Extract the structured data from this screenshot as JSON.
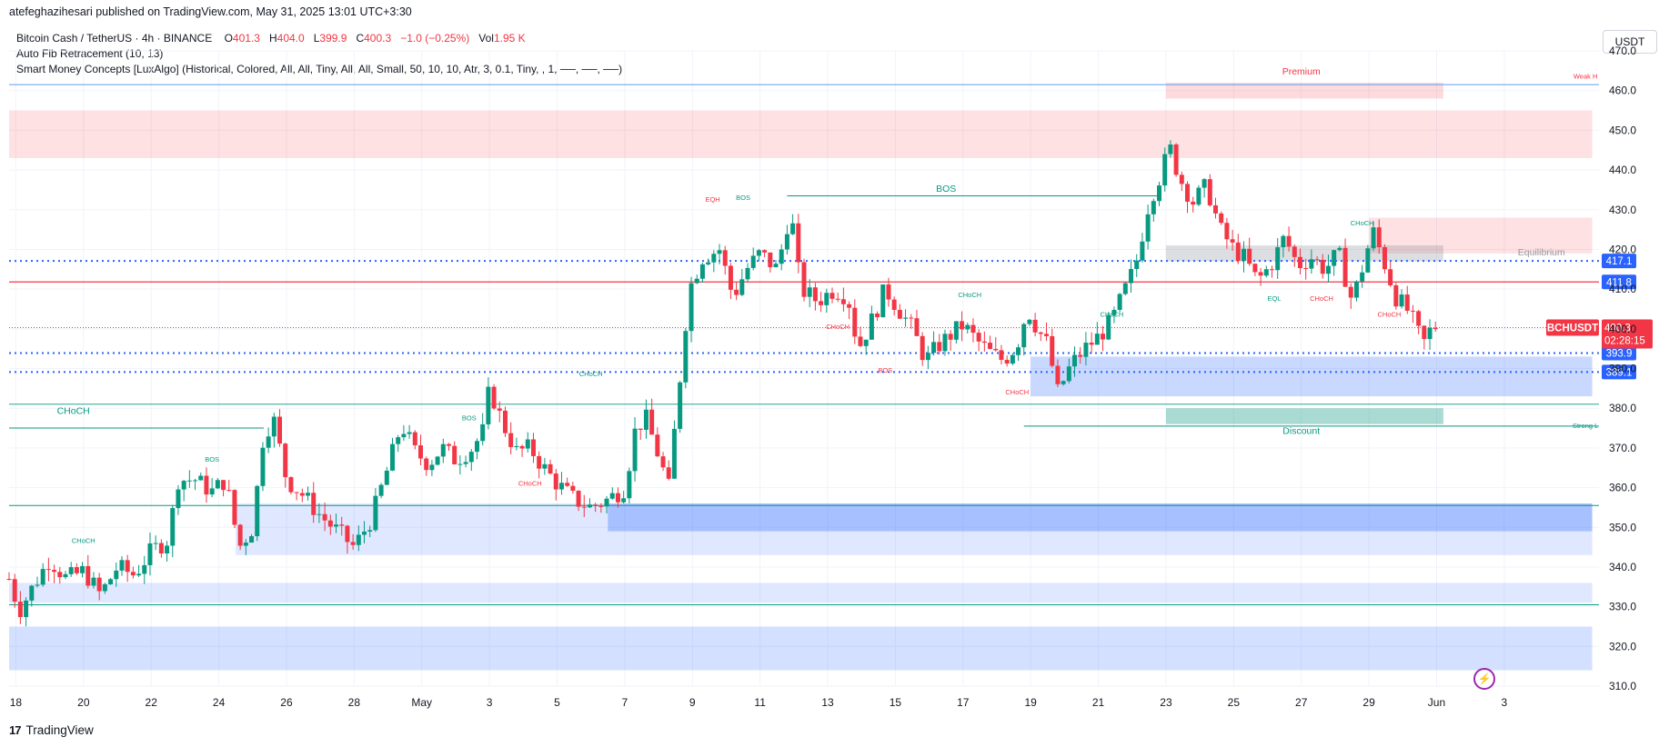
{
  "header": {
    "publisher": "atefeghazihesari published on TradingView.com, May 31, 2025 13:01 UTC+3:30",
    "symbol_line": "Bitcoin Cash / TetherUS · 4h · BINANCE",
    "ohlc": {
      "o_label": "O",
      "o": "401.3",
      "h_label": "H",
      "h": "404.0",
      "l_label": "L",
      "l": "399.9",
      "c_label": "C",
      "c": "400.3",
      "change": "−1.0 (−0.25%)",
      "vol_label": "Vol",
      "vol": "1.95 K"
    },
    "indicator1": "Auto Fib Retracement (10, 13)",
    "indicator2": "Smart Money Concepts [LuxAlgo] (Historical, Colored, All, All, Tiny, All, All, Small, 50, 10, 10, Atr, 3, 0.1, Tiny, , 1, ──, ──, ──)",
    "currency": "USDT"
  },
  "footer": {
    "brand": "TradingView",
    "logo": "17"
  },
  "colors": {
    "up": "#089981",
    "down": "#f23645",
    "blue": "#2962ff",
    "grid": "#f0f3fa"
  },
  "chart_data": {
    "type": "candlestick",
    "ylim": [
      310,
      470
    ],
    "y_ticks": [
      310,
      320,
      330,
      340,
      350,
      360,
      370,
      380,
      390,
      400,
      410,
      420,
      430,
      440,
      450,
      460,
      470
    ],
    "y_tick_labels": [
      "310.0",
      "320.0",
      "330.0",
      "340.0",
      "350.0",
      "360.0",
      "370.0",
      "380.0",
      "390.0",
      "400.0",
      "410.0",
      "420.0",
      "430.0",
      "440.0",
      "450.0",
      "460.0",
      "470.0"
    ],
    "x_ticks": [
      {
        "day": 18,
        "label": "18"
      },
      {
        "day": 20,
        "label": "20"
      },
      {
        "day": 22,
        "label": "22"
      },
      {
        "day": 24,
        "label": "24"
      },
      {
        "day": 26,
        "label": "26"
      },
      {
        "day": 28,
        "label": "28"
      },
      {
        "day": 30,
        "label": "May"
      },
      {
        "day": 32,
        "label": "3"
      },
      {
        "day": 34,
        "label": "5"
      },
      {
        "day": 36,
        "label": "7"
      },
      {
        "day": 38,
        "label": "9"
      },
      {
        "day": 40,
        "label": "11"
      },
      {
        "day": 42,
        "label": "13"
      },
      {
        "day": 44,
        "label": "15"
      },
      {
        "day": 46,
        "label": "17"
      },
      {
        "day": 48,
        "label": "19"
      },
      {
        "day": 50,
        "label": "21"
      },
      {
        "day": 52,
        "label": "23"
      },
      {
        "day": 54,
        "label": "25"
      },
      {
        "day": 56,
        "label": "27"
      },
      {
        "day": 58,
        "label": "29"
      },
      {
        "day": 60,
        "label": "Jun"
      },
      {
        "day": 62,
        "label": "3"
      }
    ],
    "price_path": [
      [
        17.8,
        337
      ],
      [
        18.1,
        329
      ],
      [
        18.5,
        335
      ],
      [
        19,
        342
      ],
      [
        19.5,
        337
      ],
      [
        20,
        339
      ],
      [
        20.5,
        333
      ],
      [
        21,
        340
      ],
      [
        21.5,
        338
      ],
      [
        22,
        344
      ],
      [
        22.5,
        347
      ],
      [
        22.8,
        362
      ],
      [
        23.3,
        362
      ],
      [
        23.8,
        359
      ],
      [
        24.2,
        362
      ],
      [
        24.6,
        345
      ],
      [
        25,
        350
      ],
      [
        25.3,
        372
      ],
      [
        25.6,
        378
      ],
      [
        26,
        362
      ],
      [
        26.5,
        358
      ],
      [
        27,
        353
      ],
      [
        27.5,
        349
      ],
      [
        28,
        345
      ],
      [
        28.5,
        352
      ],
      [
        29,
        365
      ],
      [
        29.4,
        376
      ],
      [
        29.8,
        369
      ],
      [
        30.2,
        366
      ],
      [
        30.6,
        370
      ],
      [
        31,
        367
      ],
      [
        31.5,
        370
      ],
      [
        31.8,
        374
      ],
      [
        32,
        385
      ],
      [
        32.4,
        376
      ],
      [
        32.8,
        369
      ],
      [
        33.2,
        370
      ],
      [
        33.6,
        365
      ],
      [
        34,
        361
      ],
      [
        34.5,
        357
      ],
      [
        35,
        355
      ],
      [
        35.5,
        357
      ],
      [
        36,
        360
      ],
      [
        36.3,
        374
      ],
      [
        36.6,
        378
      ],
      [
        37,
        368
      ],
      [
        37.3,
        360
      ],
      [
        37.6,
        385
      ],
      [
        37.9,
        410
      ],
      [
        38.3,
        418
      ],
      [
        38.8,
        420
      ],
      [
        39.2,
        408
      ],
      [
        39.6,
        415
      ],
      [
        40,
        419
      ],
      [
        40.5,
        415
      ],
      [
        40.9,
        430
      ],
      [
        41.2,
        410
      ],
      [
        41.7,
        407
      ],
      [
        42.2,
        410
      ],
      [
        42.6,
        408
      ],
      [
        42.9,
        395
      ],
      [
        43.3,
        402
      ],
      [
        43.7,
        410
      ],
      [
        44.1,
        405
      ],
      [
        44.5,
        400
      ],
      [
        44.9,
        392
      ],
      [
        45.3,
        396
      ],
      [
        45.7,
        399
      ],
      [
        46,
        401
      ],
      [
        46.4,
        397
      ],
      [
        46.8,
        394
      ],
      [
        47.2,
        392
      ],
      [
        47.6,
        396
      ],
      [
        47.9,
        405
      ],
      [
        48.2,
        400
      ],
      [
        48.5,
        396
      ],
      [
        48.8,
        384
      ],
      [
        49.2,
        391
      ],
      [
        49.6,
        395
      ],
      [
        50,
        398
      ],
      [
        50.4,
        402
      ],
      [
        50.8,
        410
      ],
      [
        51.1,
        416
      ],
      [
        51.5,
        432
      ],
      [
        51.9,
        440
      ],
      [
        52.1,
        446
      ],
      [
        52.4,
        438
      ],
      [
        52.8,
        432
      ],
      [
        53.2,
        436
      ],
      [
        53.6,
        425
      ],
      [
        54,
        420
      ],
      [
        54.3,
        418
      ],
      [
        54.7,
        412
      ],
      [
        55.1,
        416
      ],
      [
        55.5,
        423
      ],
      [
        55.9,
        416
      ],
      [
        56.3,
        418
      ],
      [
        56.7,
        415
      ],
      [
        57.1,
        419
      ],
      [
        57.5,
        407
      ],
      [
        57.9,
        418
      ],
      [
        58.1,
        425
      ],
      [
        58.4,
        418
      ],
      [
        58.8,
        408
      ],
      [
        59.2,
        404
      ],
      [
        59.6,
        396
      ],
      [
        59.9,
        401
      ],
      [
        60.1,
        400
      ]
    ],
    "zones": [
      {
        "label": "supply-top-left",
        "y": [
          443,
          455
        ],
        "color": "rgba(242,54,69,0.15)",
        "x": [
          17.8,
          64.6
        ]
      },
      {
        "label": "premium-zone",
        "y": [
          458,
          462
        ],
        "color": "rgba(242,54,69,0.18)",
        "x": [
          52,
          60.2
        ]
      },
      {
        "label": "supply-right",
        "y": [
          419,
          428
        ],
        "color": "rgba(242,54,69,0.15)",
        "x": [
          58,
          64.6
        ]
      },
      {
        "label": "equilibrium-zone",
        "y": [
          417,
          421
        ],
        "color": "rgba(120,123,134,0.25)",
        "x": [
          52,
          60.2
        ]
      },
      {
        "label": "demand-right",
        "y": [
          383,
          393
        ],
        "color": "rgba(41,98,255,0.25)",
        "x": [
          48,
          64.6
        ]
      },
      {
        "label": "discount-zone",
        "y": [
          376,
          380
        ],
        "color": "rgba(8,153,129,0.35)",
        "x": [
          52,
          60.2
        ]
      },
      {
        "label": "demand-mid",
        "y": [
          349,
          356
        ],
        "color": "rgba(41,98,255,0.30)",
        "x": [
          35.5,
          64.6
        ]
      },
      {
        "label": "demand-wide",
        "y": [
          343,
          356
        ],
        "color": "rgba(41,98,255,0.15)",
        "x": [
          24.5,
          64.6
        ]
      },
      {
        "label": "demand-lower",
        "y": [
          331,
          336
        ],
        "color": "rgba(41,98,255,0.15)",
        "x": [
          17.8,
          64.6
        ]
      },
      {
        "label": "demand-bottom",
        "y": [
          314,
          325
        ],
        "color": "rgba(41,98,255,0.20)",
        "x": [
          17.8,
          64.6
        ]
      }
    ],
    "levels": [
      {
        "y": 417.1,
        "label": "417.1",
        "color": "#2962ff",
        "style": "dotted"
      },
      {
        "y": 411.8,
        "label": "411.8",
        "color": "#2962ff",
        "style": "solid-red-line"
      },
      {
        "y": 393.9,
        "label": "393.9",
        "color": "#2962ff",
        "style": "dotted"
      },
      {
        "y": 389.1,
        "label": "389.1",
        "color": "#2962ff",
        "style": "dotted"
      }
    ],
    "current_price": {
      "y": 400.3,
      "symbol": "BCHUSDT",
      "price": "400.3",
      "countdown": "02:28:15"
    },
    "annotations": [
      {
        "text": "Premium",
        "day": 56,
        "y": 464,
        "color": "#f23645"
      },
      {
        "text": "Weak H",
        "day": 64.4,
        "y": 463,
        "color": "#f23645"
      },
      {
        "text": "Equilibrium",
        "day": 63.1,
        "y": 418.5,
        "color": "#9598a1"
      },
      {
        "text": "Discount",
        "day": 56,
        "y": 373.5,
        "color": "#089981"
      },
      {
        "text": "Strong L",
        "day": 64.4,
        "y": 375,
        "color": "#089981"
      },
      {
        "text": "BOS",
        "day": 45.5,
        "y": 434.5,
        "color": "#089981"
      },
      {
        "text": "CHoCH",
        "day": 19.7,
        "y": 378.5,
        "color": "#089981"
      },
      {
        "text": "CHoCH",
        "day": 20,
        "y": 346,
        "color": "#089981"
      },
      {
        "text": "BOS",
        "day": 23.8,
        "y": 366.5,
        "color": "#089981"
      },
      {
        "text": "BOS",
        "day": 31.4,
        "y": 377,
        "color": "#089981"
      },
      {
        "text": "CHoCH",
        "day": 35,
        "y": 388,
        "color": "#089981"
      },
      {
        "text": "EQH",
        "day": 38.6,
        "y": 432,
        "color": "#f23645"
      },
      {
        "text": "BOS",
        "day": 39.5,
        "y": 432.5,
        "color": "#089981"
      },
      {
        "text": "CHoCH",
        "day": 42.3,
        "y": 400,
        "color": "#f23645"
      },
      {
        "text": "BOS",
        "day": 43.7,
        "y": 389,
        "color": "#f23645"
      },
      {
        "text": "CHoCH",
        "day": 33.2,
        "y": 360.5,
        "color": "#f23645"
      },
      {
        "text": "CHoCH",
        "day": 46.2,
        "y": 408,
        "color": "#089981"
      },
      {
        "text": "CHoCH",
        "day": 47.6,
        "y": 383.5,
        "color": "#f23645"
      },
      {
        "text": "CHoCH",
        "day": 50.4,
        "y": 403,
        "color": "#089981"
      },
      {
        "text": "EQL",
        "day": 55.2,
        "y": 407,
        "color": "#089981"
      },
      {
        "text": "CHoCH",
        "day": 56.6,
        "y": 407,
        "color": "#f23645"
      },
      {
        "text": "CHoCH",
        "day": 57.8,
        "y": 426,
        "color": "#089981"
      },
      {
        "text": "CHoCH",
        "day": 58.6,
        "y": 403,
        "color": "#f23645"
      }
    ]
  }
}
